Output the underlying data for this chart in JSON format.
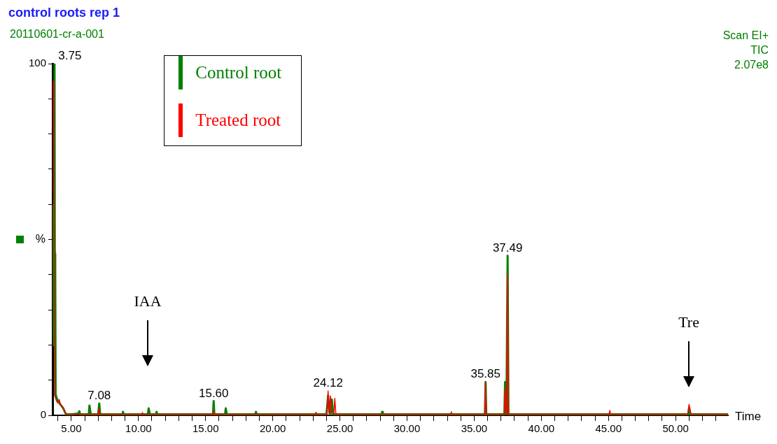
{
  "chart_data": {
    "type": "line",
    "title": "control roots rep 1",
    "subtitle": "20110601-cr-a-001",
    "xlabel": "Time",
    "ylabel": "%",
    "legend": "top left",
    "xlim": [
      3.6,
      53.9
    ],
    "ylim": [
      0,
      100
    ],
    "xticks": [
      {
        "value": 4,
        "label": null
      },
      {
        "value": 5,
        "label": "5.00"
      },
      {
        "value": 6,
        "label": null
      },
      {
        "value": 7,
        "label": null
      },
      {
        "value": 8,
        "label": null
      },
      {
        "value": 9,
        "label": null
      },
      {
        "value": 10,
        "label": "10.00"
      },
      {
        "value": 11,
        "label": null
      },
      {
        "value": 12,
        "label": null
      },
      {
        "value": 13,
        "label": null
      },
      {
        "value": 14,
        "label": null
      },
      {
        "value": 15,
        "label": "15.00"
      },
      {
        "value": 16,
        "label": null
      },
      {
        "value": 17,
        "label": null
      },
      {
        "value": 18,
        "label": null
      },
      {
        "value": 19,
        "label": null
      },
      {
        "value": 20,
        "label": "20.00"
      },
      {
        "value": 21,
        "label": null
      },
      {
        "value": 22,
        "label": null
      },
      {
        "value": 23,
        "label": null
      },
      {
        "value": 24,
        "label": null
      },
      {
        "value": 25,
        "label": "25.00"
      },
      {
        "value": 26,
        "label": null
      },
      {
        "value": 27,
        "label": null
      },
      {
        "value": 28,
        "label": null
      },
      {
        "value": 29,
        "label": null
      },
      {
        "value": 30,
        "label": "30.00"
      },
      {
        "value": 31,
        "label": null
      },
      {
        "value": 32,
        "label": null
      },
      {
        "value": 33,
        "label": null
      },
      {
        "value": 34,
        "label": null
      },
      {
        "value": 35,
        "label": "35.00"
      },
      {
        "value": 36,
        "label": null
      },
      {
        "value": 37,
        "label": null
      },
      {
        "value": 38,
        "label": null
      },
      {
        "value": 39,
        "label": null
      },
      {
        "value": 40,
        "label": "40.00"
      },
      {
        "value": 41,
        "label": null
      },
      {
        "value": 42,
        "label": null
      },
      {
        "value": 43,
        "label": null
      },
      {
        "value": 44,
        "label": null
      },
      {
        "value": 45,
        "label": "45.00"
      },
      {
        "value": 46,
        "label": null
      },
      {
        "value": 47,
        "label": null
      },
      {
        "value": 48,
        "label": null
      },
      {
        "value": 49,
        "label": null
      },
      {
        "value": 50,
        "label": "50.00"
      },
      {
        "value": 51,
        "label": null
      },
      {
        "value": 52,
        "label": null
      },
      {
        "value": 53,
        "label": null
      }
    ],
    "yticks": [
      0,
      {
        "value": 10,
        "label": null
      },
      {
        "value": 20,
        "label": null
      },
      {
        "value": 30,
        "label": null
      },
      {
        "value": 40,
        "label": null
      },
      {
        "value": 50,
        "label": null
      },
      {
        "value": 60,
        "label": null
      },
      {
        "value": 70,
        "label": null
      },
      {
        "value": 80,
        "label": null
      },
      {
        "value": 90,
        "label": null
      },
      100
    ],
    "series": [
      {
        "name": "Control root",
        "color": "#008000",
        "x": [
          3.66,
          3.7,
          3.75,
          3.78,
          3.8,
          3.83,
          3.9,
          4.0,
          4.2,
          4.4,
          4.6,
          5.0,
          5.5,
          5.6,
          5.65,
          6.3,
          6.35,
          6.45,
          7.0,
          7.08,
          7.15,
          8.8,
          8.85,
          8.9,
          10.7,
          10.76,
          10.85,
          11.3,
          11.35,
          11.4,
          15.55,
          15.6,
          15.65,
          16.45,
          16.5,
          16.58,
          18.7,
          18.75,
          18.8,
          24.0,
          24.12,
          24.25,
          24.4,
          24.5,
          28.1,
          28.15,
          28.2,
          35.8,
          35.85,
          35.9,
          37.25,
          37.3,
          37.4,
          37.49,
          37.55,
          37.65,
          50.95,
          51.0,
          51.1,
          53.9
        ],
        "values": [
          60,
          20,
          100,
          20,
          46,
          6,
          5,
          4,
          3,
          2,
          0.3,
          0.3,
          0.5,
          1.2,
          0.3,
          0.3,
          2.8,
          0.3,
          0.3,
          3.4,
          0.3,
          0.3,
          1,
          0.3,
          0.3,
          2,
          0.3,
          0.3,
          1,
          0.3,
          0.3,
          4.1,
          0.3,
          0.3,
          2,
          0.3,
          0.3,
          1,
          0.3,
          0.3,
          5.6,
          0.3,
          4.5,
          0.3,
          0.3,
          1,
          0.3,
          0.3,
          9.5,
          0.3,
          0.3,
          9.5,
          0.3,
          45.4,
          0.3,
          0.3,
          0.3,
          2,
          0.3,
          0.3
        ]
      },
      {
        "name": "Treated root",
        "color": "#ff0000",
        "x": [
          3.64,
          3.67,
          3.7,
          3.75,
          3.9,
          4.0,
          4.1,
          4.2,
          4.4,
          4.6,
          7.0,
          7.05,
          7.1,
          10.25,
          10.3,
          10.35,
          15.55,
          15.6,
          15.65,
          23.15,
          23.2,
          23.25,
          24.05,
          24.12,
          24.2,
          24.3,
          24.38,
          24.55,
          24.62,
          24.7,
          33.25,
          33.3,
          33.35,
          35.8,
          35.85,
          35.9,
          37.25,
          37.3,
          37.38,
          37.43,
          37.49,
          37.55,
          45.05,
          45.1,
          45.15,
          50.9,
          51.0,
          51.15,
          53.9
        ],
        "values": [
          95,
          95,
          75,
          5.7,
          4,
          3.5,
          4.5,
          3,
          2,
          0.3,
          0.3,
          2,
          0.3,
          0.3,
          0.8,
          0.3,
          0.3,
          1.2,
          0.3,
          0.3,
          0.8,
          0.3,
          0.3,
          6.9,
          0.5,
          5.5,
          0.5,
          0.3,
          4.8,
          0.3,
          0.3,
          1,
          0.3,
          0.3,
          9.5,
          0.3,
          0.3,
          7.5,
          0.3,
          0.3,
          40,
          0.3,
          0.3,
          1.4,
          0.3,
          0.3,
          3.1,
          0.3,
          0.3
        ]
      }
    ],
    "annotations": [
      {
        "text": "3.75",
        "x": 3.75,
        "y": 100
      },
      {
        "text": "7.08",
        "x": 7.08,
        "y": 3.4
      },
      {
        "text": "15.60",
        "x": 15.6,
        "y": 4.1
      },
      {
        "text": "24.12",
        "x": 24.12,
        "y": 6.9
      },
      {
        "text": "35.85",
        "x": 35.85,
        "y": 9.5
      },
      {
        "text": "37.49",
        "x": 37.49,
        "y": 45.4
      },
      "IAA",
      "Tre",
      "Scan EI+",
      "TIC",
      "2.07e8"
    ]
  }
}
